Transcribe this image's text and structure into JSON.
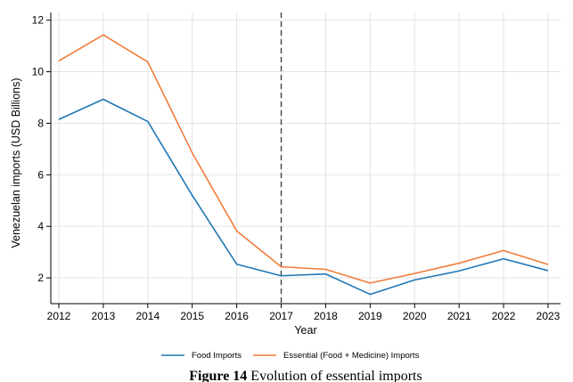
{
  "chart_data": {
    "type": "line",
    "xlabel": "Year",
    "ylabel": "Venezuelan imports (USD Billions)",
    "x": [
      2012,
      2013,
      2014,
      2015,
      2016,
      2017,
      2018,
      2019,
      2020,
      2021,
      2022,
      2023
    ],
    "x_ticks": [
      "2012",
      "2013",
      "2014",
      "2015",
      "2016",
      "2017",
      "2018",
      "2019",
      "2020",
      "2021",
      "2022",
      "2023"
    ],
    "y_ticks": [
      "2",
      "4",
      "6",
      "8",
      "10",
      "12"
    ],
    "xlim": [
      2012,
      2023
    ],
    "ylim": [
      1,
      12.3
    ],
    "grid": true,
    "vertical_reference_line": 2017,
    "legend_position": "bottom",
    "series": [
      {
        "name": "Food Imports",
        "color": "#1f77b4",
        "values": [
          8.15,
          8.93,
          8.07,
          5.2,
          2.53,
          2.08,
          2.15,
          1.36,
          1.92,
          2.27,
          2.74,
          2.28
        ]
      },
      {
        "name": "Essential (Food + Medicine) Imports",
        "color": "#f07c3a",
        "values": [
          10.42,
          11.43,
          10.38,
          6.85,
          3.82,
          2.43,
          2.33,
          1.8,
          2.17,
          2.57,
          3.06,
          2.52
        ]
      }
    ]
  },
  "caption": {
    "label": "Figure 14",
    "text": "Evolution of essential imports"
  }
}
